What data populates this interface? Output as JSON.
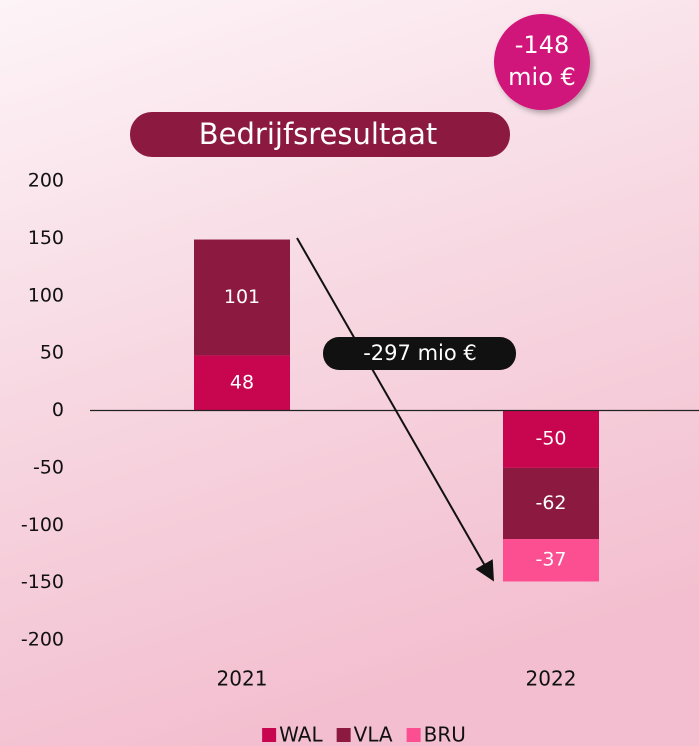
{
  "chart_data": {
    "type": "bar",
    "stacked": true,
    "title": "Bedrijfsresultaat",
    "badge": [
      "-148",
      "mio €"
    ],
    "annotation": "-297 mio €",
    "categories": [
      "2021",
      "2022"
    ],
    "series": [
      {
        "name": "WAL",
        "color": "#c8054f",
        "values": [
          48,
          -50
        ]
      },
      {
        "name": "VLA",
        "color": "#8c1a40",
        "values": [
          101,
          -62
        ]
      },
      {
        "name": "BRU",
        "color": "#fb4f92",
        "values": [
          null,
          -37
        ]
      }
    ],
    "ylim": [
      -200,
      200
    ],
    "yticks": [
      -200,
      -150,
      -100,
      -50,
      0,
      50,
      100,
      150,
      200
    ],
    "legend": "bottom"
  }
}
